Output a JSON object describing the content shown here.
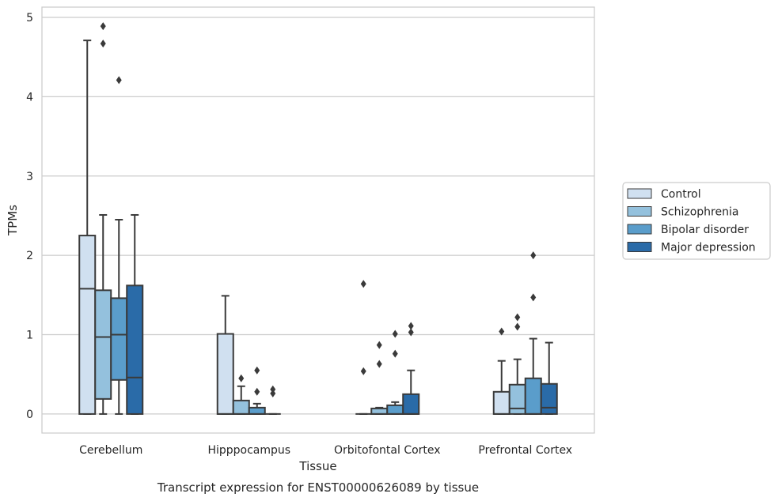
{
  "chart_data": {
    "type": "boxplot",
    "title": "",
    "caption": "Transcript expression for ENST00000626089 by tissue",
    "xlabel": "Tissue",
    "ylabel": "TPMs",
    "ylim": [
      -0.24,
      5.13
    ],
    "yticks": [
      0,
      1,
      2,
      3,
      4,
      5
    ],
    "ytick_labels": [
      "0",
      "1",
      "2",
      "3",
      "4",
      "5"
    ],
    "grid": "horizontal",
    "legend_position": "right",
    "categories": [
      "Cerebellum",
      "Hipppocampus",
      "Orbitofontal Cortex",
      "Prefrontal Cortex"
    ],
    "series": [
      {
        "name": "Control",
        "color": "#d0e0f0",
        "boxes": [
          {
            "whislo": 0,
            "q1": 0,
            "med": 1.58,
            "q3": 2.25,
            "whishi": 4.71,
            "fliers": []
          },
          {
            "whislo": 0,
            "q1": 0,
            "med": 0,
            "q3": 1.01,
            "whishi": 1.49,
            "fliers": []
          },
          {
            "whislo": 0,
            "q1": 0,
            "med": 0,
            "q3": 0,
            "whishi": 0,
            "fliers": [
              0.54,
              1.64
            ]
          },
          {
            "whislo": 0,
            "q1": 0,
            "med": 0,
            "q3": 0.28,
            "whishi": 0.67,
            "fliers": [
              1.04
            ]
          }
        ]
      },
      {
        "name": "Schizophrenia",
        "color": "#94c1dd",
        "boxes": [
          {
            "whislo": 0,
            "q1": 0.19,
            "med": 0.97,
            "q3": 1.56,
            "whishi": 2.51,
            "fliers": [
              4.67,
              4.89
            ]
          },
          {
            "whislo": 0,
            "q1": 0,
            "med": 0,
            "q3": 0.17,
            "whishi": 0.35,
            "fliers": [
              0.45
            ]
          },
          {
            "whislo": 0,
            "q1": 0,
            "med": 0,
            "q3": 0.07,
            "whishi": 0.08,
            "fliers": [
              0.63,
              0.87
            ]
          },
          {
            "whislo": 0,
            "q1": 0,
            "med": 0.07,
            "q3": 0.37,
            "whishi": 0.69,
            "fliers": [
              1.1,
              1.22
            ]
          }
        ]
      },
      {
        "name": "Bipolar disorder",
        "color": "#5a9dcb",
        "boxes": [
          {
            "whislo": 0,
            "q1": 0.43,
            "med": 1.0,
            "q3": 1.46,
            "whishi": 2.45,
            "fliers": [
              4.21
            ]
          },
          {
            "whislo": 0,
            "q1": 0,
            "med": 0,
            "q3": 0.08,
            "whishi": 0.13,
            "fliers": [
              0.28,
              0.55
            ]
          },
          {
            "whislo": 0,
            "q1": 0,
            "med": 0,
            "q3": 0.11,
            "whishi": 0.15,
            "fliers": [
              0.76,
              1.01
            ]
          },
          {
            "whislo": 0,
            "q1": 0,
            "med": 0,
            "q3": 0.45,
            "whishi": 0.95,
            "fliers": [
              1.47,
              2.0
            ]
          }
        ]
      },
      {
        "name": "Major depression",
        "color": "#2a6ba8",
        "boxes": [
          {
            "whislo": 0,
            "q1": 0,
            "med": 0.46,
            "q3": 1.62,
            "whishi": 2.51,
            "fliers": []
          },
          {
            "whislo": 0,
            "q1": 0,
            "med": 0,
            "q3": 0,
            "whishi": 0,
            "fliers": [
              0.26,
              0.31
            ]
          },
          {
            "whislo": 0,
            "q1": 0,
            "med": 0,
            "q3": 0.25,
            "whishi": 0.55,
            "fliers": [
              1.03,
              1.11
            ]
          },
          {
            "whislo": 0,
            "q1": 0,
            "med": 0.08,
            "q3": 0.38,
            "whishi": 0.9,
            "fliers": []
          }
        ]
      }
    ]
  }
}
